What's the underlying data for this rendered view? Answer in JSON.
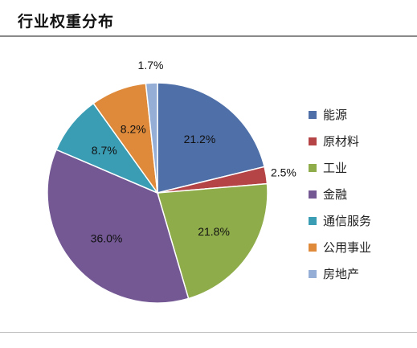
{
  "title": "行业权重分布",
  "chart_data": {
    "type": "pie",
    "title": "行业权重分布",
    "legend_position": "right",
    "slices": [
      {
        "label": "能源",
        "value": 21.2,
        "display": "21.2%",
        "color": "#4f6fa8",
        "label_outside": false
      },
      {
        "label": "原材料",
        "value": 2.5,
        "display": "2.5%",
        "color": "#b54446",
        "label_outside": true
      },
      {
        "label": "工业",
        "value": 21.8,
        "display": "21.8%",
        "color": "#8fac4a",
        "label_outside": false
      },
      {
        "label": "金融",
        "value": 36.0,
        "display": "36.0%",
        "color": "#735894",
        "label_outside": false
      },
      {
        "label": "通信服务",
        "value": 8.7,
        "display": "8.7%",
        "color": "#3a9db4",
        "label_outside": false
      },
      {
        "label": "公用事业",
        "value": 8.2,
        "display": "8.2%",
        "color": "#de8a3a",
        "label_outside": false
      },
      {
        "label": "房地产",
        "value": 1.7,
        "display": "1.7%",
        "color": "#94aed6",
        "label_outside": true
      }
    ]
  }
}
